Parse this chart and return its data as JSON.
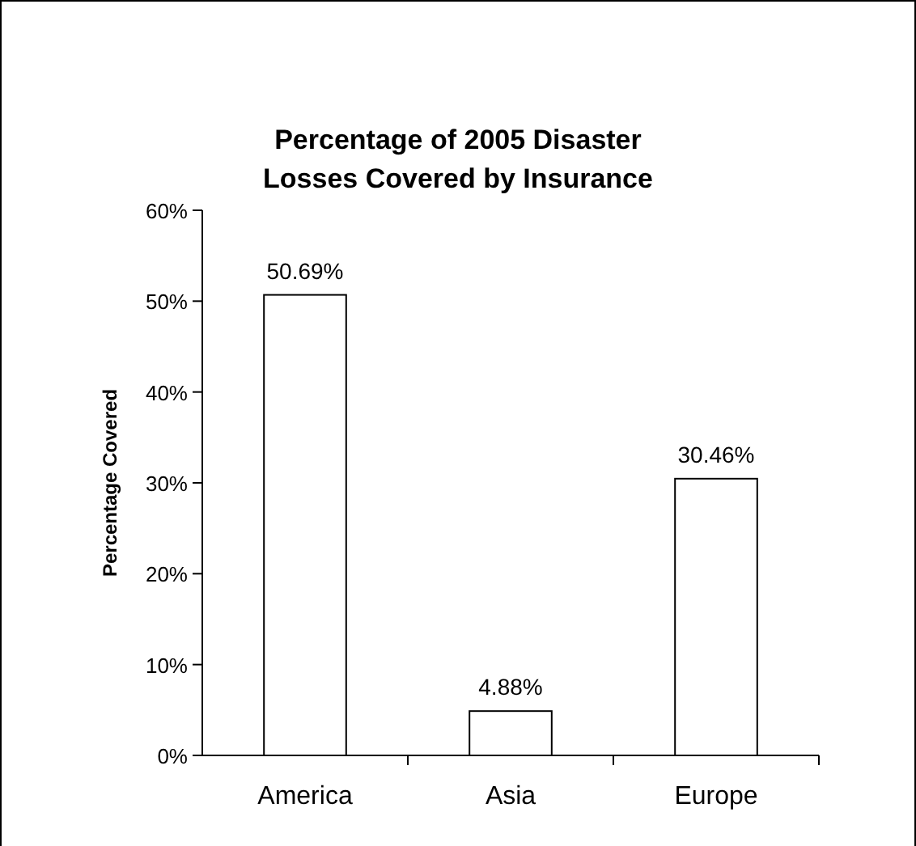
{
  "chart_data": {
    "type": "bar",
    "title": "Percentage of 2005 Disaster Losses Covered by Insurance",
    "ylabel": "Percentage Covered",
    "categories": [
      "America",
      "Asia",
      "Europe"
    ],
    "values": [
      50.69,
      4.88,
      30.46
    ],
    "value_labels": [
      "50.69%",
      "4.88%",
      "30.46%"
    ],
    "color": "#ffffff",
    "ylim": [
      0,
      60
    ],
    "yticks": [
      {
        "value": 0,
        "label": "0%"
      },
      {
        "value": 10,
        "label": "10%"
      },
      {
        "value": 20,
        "label": "20%"
      },
      {
        "value": 30,
        "label": "30%"
      },
      {
        "value": 40,
        "label": "40%"
      },
      {
        "value": 50,
        "label": "50%"
      },
      {
        "value": 60,
        "label": "60%"
      }
    ]
  }
}
